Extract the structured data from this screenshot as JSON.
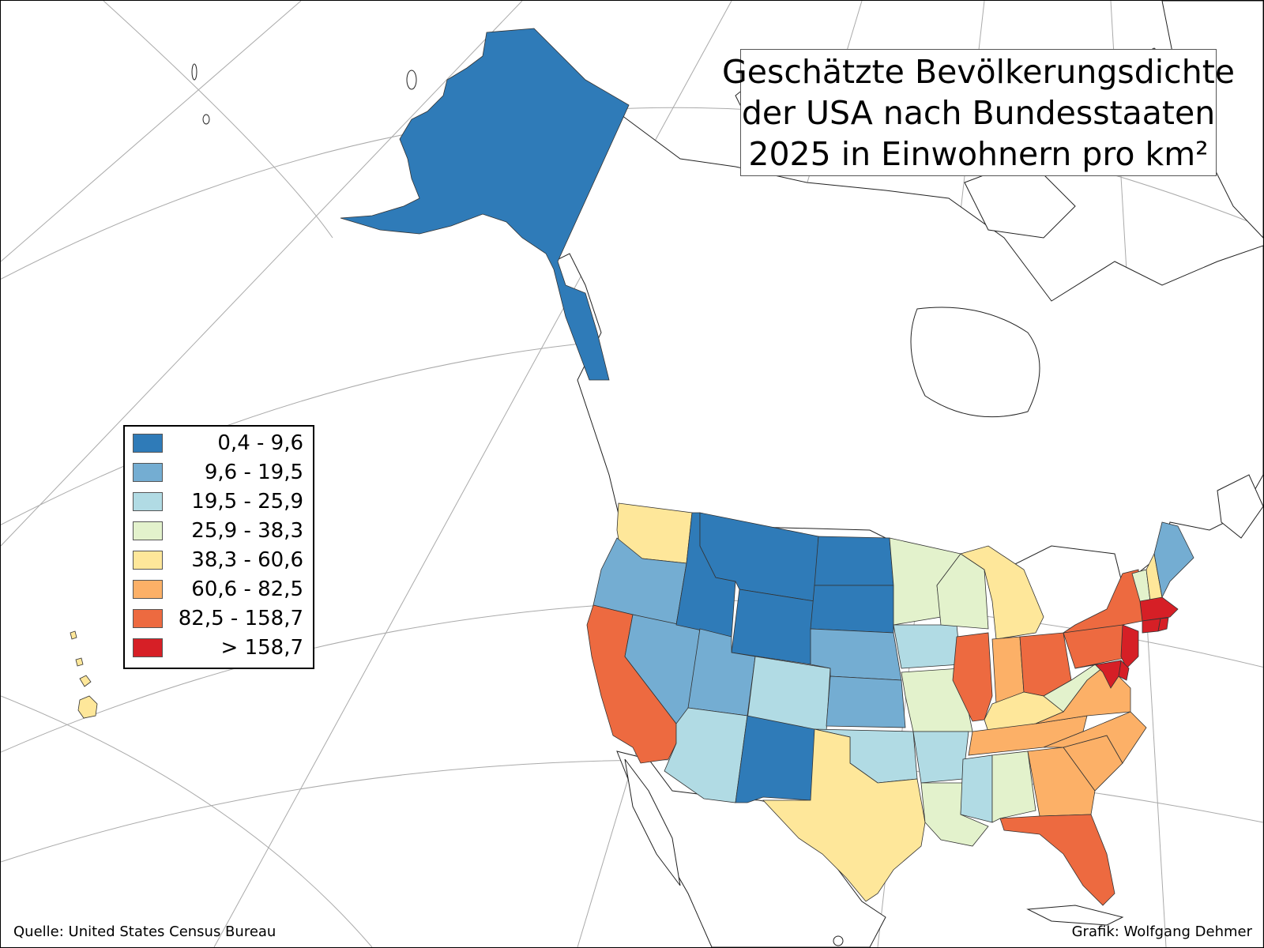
{
  "title": {
    "lines": [
      "Geschätzte Bevölkerungsdichte",
      "der USA nach Bundesstaaten",
      "2025 in Einwohnern pro km²"
    ]
  },
  "legend": {
    "classes": [
      {
        "label": "0,4 - 9,6",
        "color": "#2f7bb8"
      },
      {
        "label": "9,6 - 19,5",
        "color": "#74add2"
      },
      {
        "label": "19,5 - 25,9",
        "color": "#b1dbe4"
      },
      {
        "label": "25,9 - 38,3",
        "color": "#e3f2cc"
      },
      {
        "label": "38,3 - 60,6",
        "color": "#fee79a"
      },
      {
        "label": "60,6 - 82,5",
        "color": "#fcb067"
      },
      {
        "label": "82,5 - 158,7",
        "color": "#ed6a40"
      },
      {
        "label": "> 158,7",
        "color": "#d61f26"
      }
    ]
  },
  "footer": {
    "source": "Quelle: United States Census Bureau",
    "credit": "Grafik: Wolfgang Dehmer"
  },
  "map": {
    "regions": [
      {
        "name": "Alaska",
        "class": 0
      },
      {
        "name": "Hawaii",
        "class": 4
      },
      {
        "name": "Washington",
        "class": 4
      },
      {
        "name": "Oregon",
        "class": 1
      },
      {
        "name": "California",
        "class": 6
      },
      {
        "name": "Nevada",
        "class": 1
      },
      {
        "name": "Idaho",
        "class": 0
      },
      {
        "name": "Montana",
        "class": 0
      },
      {
        "name": "Wyoming",
        "class": 0
      },
      {
        "name": "Utah",
        "class": 1
      },
      {
        "name": "Colorado",
        "class": 2
      },
      {
        "name": "Arizona",
        "class": 2
      },
      {
        "name": "New Mexico",
        "class": 0
      },
      {
        "name": "North Dakota",
        "class": 0
      },
      {
        "name": "South Dakota",
        "class": 0
      },
      {
        "name": "Nebraska",
        "class": 1
      },
      {
        "name": "Kansas",
        "class": 1
      },
      {
        "name": "Oklahoma",
        "class": 2
      },
      {
        "name": "Texas",
        "class": 4
      },
      {
        "name": "Minnesota",
        "class": 3
      },
      {
        "name": "Iowa",
        "class": 2
      },
      {
        "name": "Missouri",
        "class": 3
      },
      {
        "name": "Arkansas",
        "class": 2
      },
      {
        "name": "Louisiana",
        "class": 3
      },
      {
        "name": "Wisconsin",
        "class": 3
      },
      {
        "name": "Illinois",
        "class": 6
      },
      {
        "name": "Michigan",
        "class": 4
      },
      {
        "name": "Indiana",
        "class": 5
      },
      {
        "name": "Ohio",
        "class": 6
      },
      {
        "name": "Kentucky",
        "class": 4
      },
      {
        "name": "Tennessee",
        "class": 5
      },
      {
        "name": "Mississippi",
        "class": 2
      },
      {
        "name": "Alabama",
        "class": 3
      },
      {
        "name": "Georgia",
        "class": 5
      },
      {
        "name": "Florida",
        "class": 6
      },
      {
        "name": "South Carolina",
        "class": 5
      },
      {
        "name": "North Carolina",
        "class": 5
      },
      {
        "name": "Virginia",
        "class": 5
      },
      {
        "name": "West Virginia",
        "class": 3
      },
      {
        "name": "Pennsylvania",
        "class": 6
      },
      {
        "name": "New York",
        "class": 6
      },
      {
        "name": "Vermont",
        "class": 3
      },
      {
        "name": "New Hampshire",
        "class": 4
      },
      {
        "name": "Maine",
        "class": 1
      },
      {
        "name": "Massachusetts",
        "class": 7
      },
      {
        "name": "Rhode Island",
        "class": 7
      },
      {
        "name": "Connecticut",
        "class": 7
      },
      {
        "name": "New Jersey",
        "class": 7
      },
      {
        "name": "Delaware",
        "class": 7
      },
      {
        "name": "Maryland",
        "class": 7
      }
    ]
  }
}
